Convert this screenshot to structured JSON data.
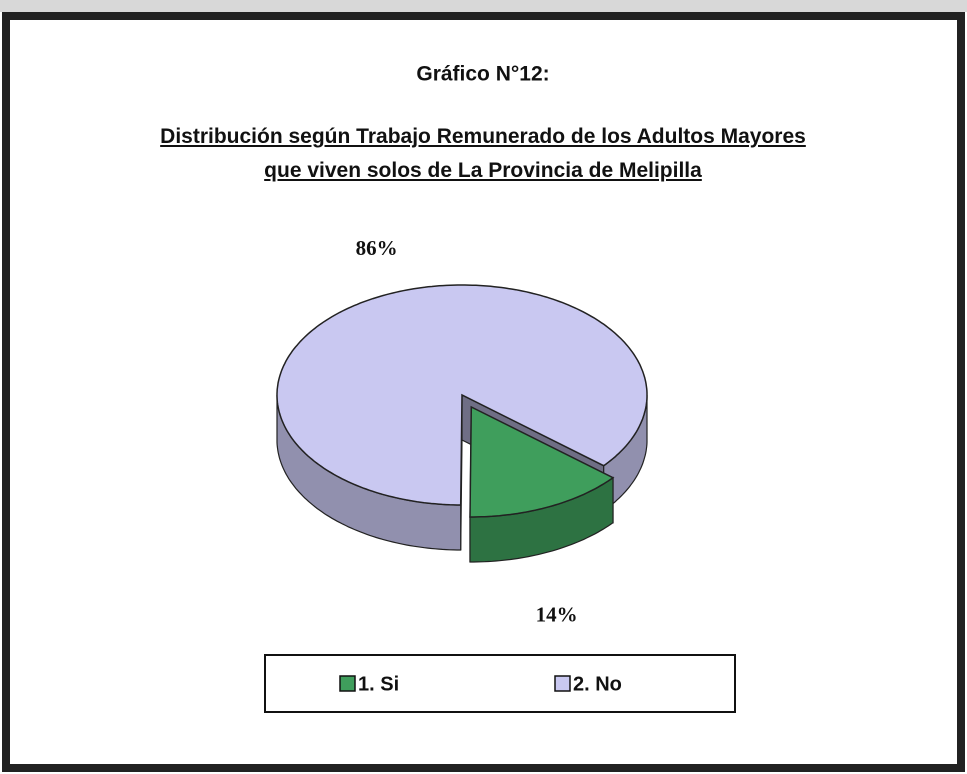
{
  "chart_data": {
    "type": "pie3d",
    "title": "Gráfico N°12:",
    "subtitle": "Distribución según Trabajo Remunerado de los Adultos Mayores que viven solos de La Provincia de Melipilla",
    "categories": [
      "1. Si",
      "2. No"
    ],
    "values": [
      14,
      86
    ],
    "value_labels": [
      "14%",
      "86%"
    ],
    "colors": [
      "#3f9e5c",
      "#c9c8f1"
    ],
    "explode": [
      0.12,
      0
    ],
    "legend": "bottom"
  }
}
